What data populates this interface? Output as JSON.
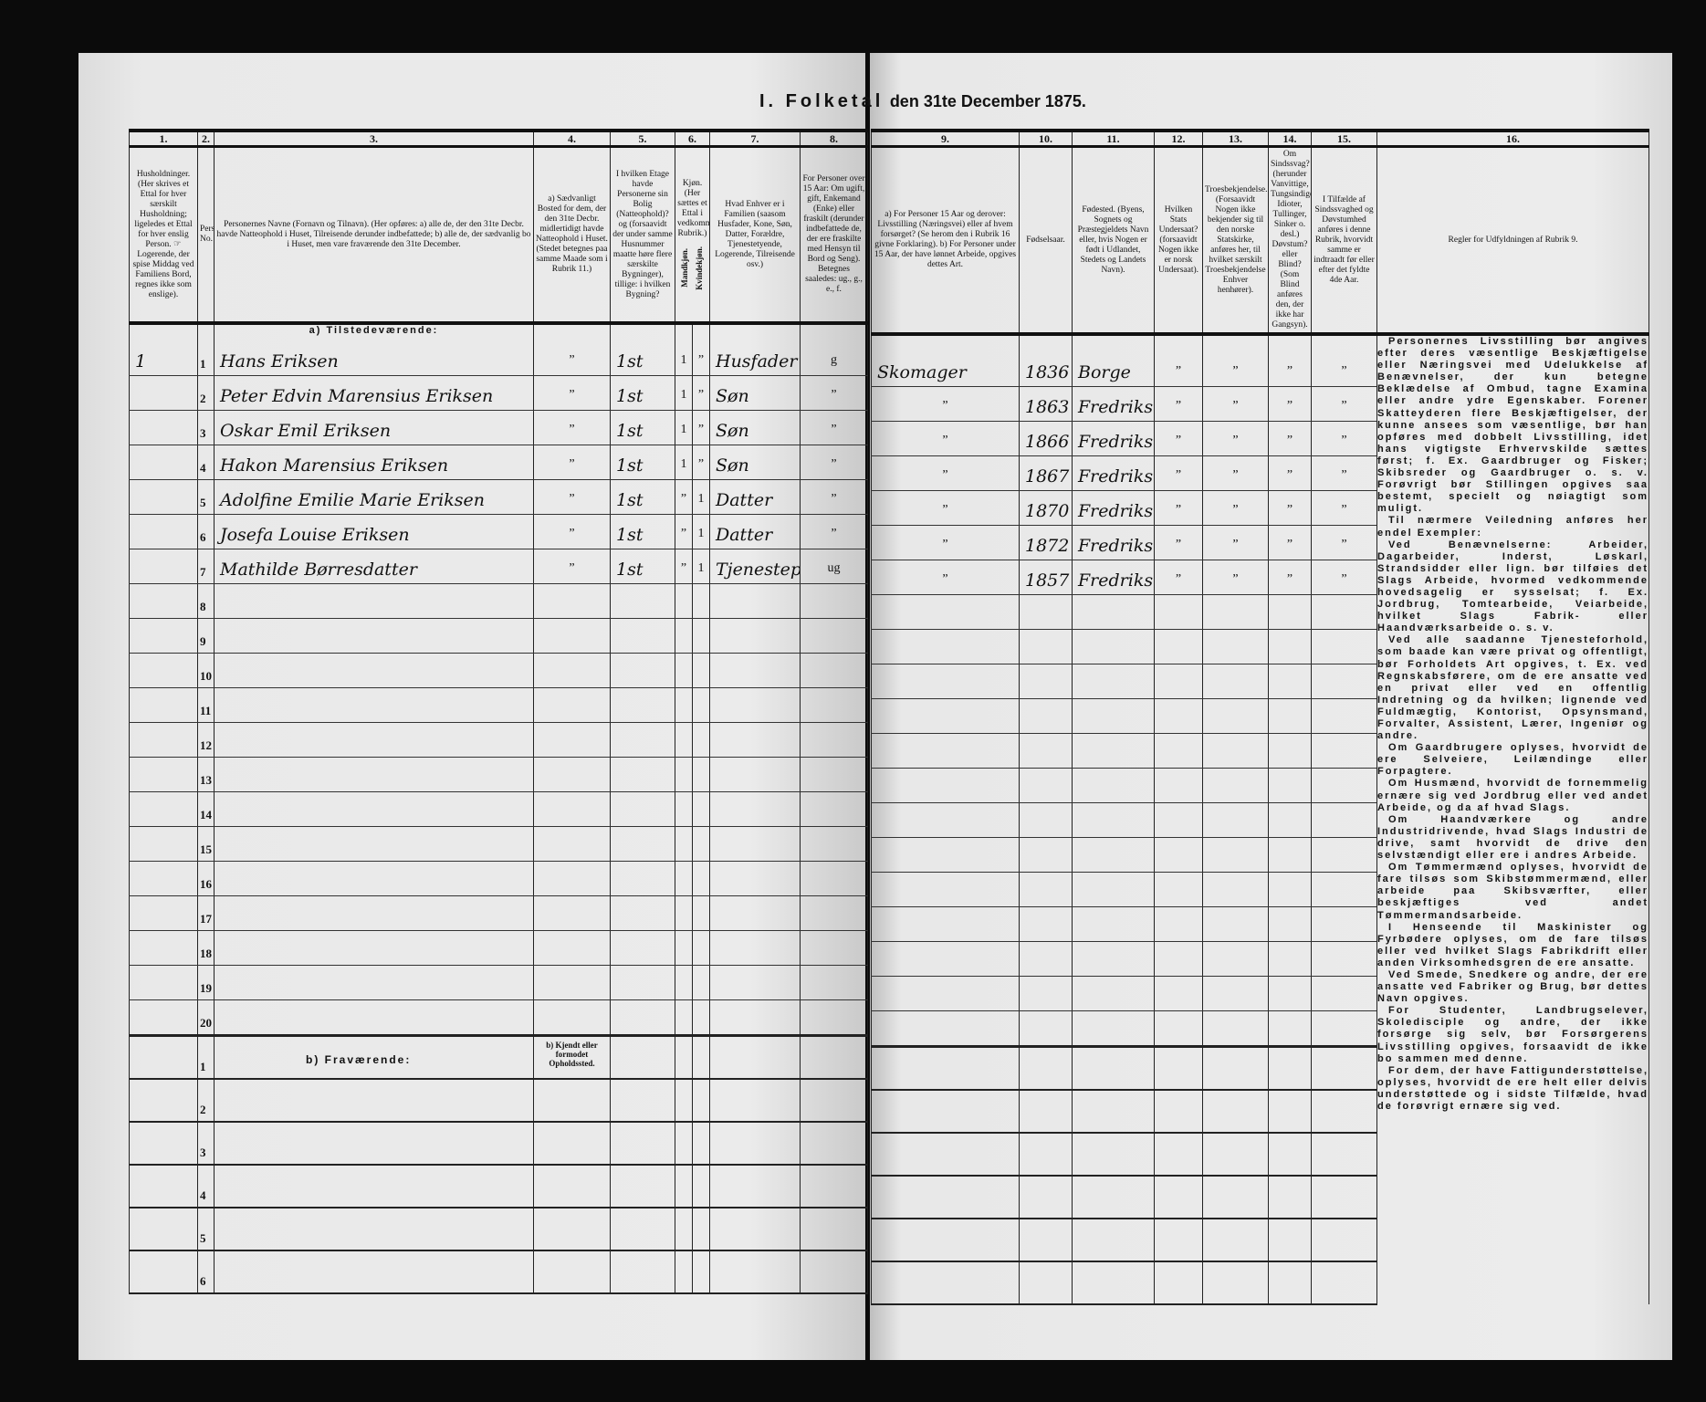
{
  "title": {
    "part1": "I. Folketal",
    "part2": "den 31te December 1875."
  },
  "left_columns": [
    {
      "num": "1.",
      "text": "Husholdninger. (Her skrives et Ettal for hver særskilt Husholdning; ligeledes et Ettal for hver enslig Person. ☞ Logerende, der spise Middag ved Familiens Bord, regnes ikke som enslige)."
    },
    {
      "num": "2.",
      "text": "Personernes No."
    },
    {
      "num": "3.",
      "text": "Personernes Navne (Fornavn og Tilnavn). (Her opføres: a) alle de, der den 31te Decbr. havde Natteophold i Huset, Tilreisende derunder indbefattede; b) alle de, der sædvanlig bo i Huset, men vare fraværende den 31te December."
    },
    {
      "num": "4.",
      "text": "a) Sædvanligt Bosted for dem, der den 31te Decbr. midlertidigt havde Natteophold i Huset. (Stedet betegnes paa samme Maade som i Rubrik 11.)"
    },
    {
      "num": "5.",
      "text": "I hvilken Etage havde Personerne sin Bolig (Natteophold)? og (forsaavidt der under samme Husnummer maatte høre flere særskilte Bygninger), tillige: i hvilken Bygning?"
    },
    {
      "num": "6.",
      "text": "Kjøn. (Her sættes et Ettal i vedkommende Rubrik.)",
      "sub": [
        "Mandkjøn.",
        "Kvindekjøn."
      ]
    },
    {
      "num": "7.",
      "text": "Hvad Enhver er i Familien (saasom Husfader, Kone, Søn, Datter, Forældre, Tjenestetyende, Logerende, Tilreisende osv.)"
    },
    {
      "num": "8.",
      "text": "For Personer over 15 Aar: Om ugift, gift, Enkemand (Enke) eller fraskilt (derunder indbefattede de, der ere fraskilte med Hensyn til Bord og Seng). Betegnes saaledes: ug., g., e., f."
    }
  ],
  "right_columns": [
    {
      "num": "9.",
      "text": "a) For Personer 15 Aar og derover: Livsstilling (Næringsvei) eller af hvem forsørget? (Se herom den i Rubrik 16 givne Forklaring). b) For Personer under 15 Aar, der have lønnet Arbeide, opgives dettes Art."
    },
    {
      "num": "10.",
      "text": "Fødselsaar."
    },
    {
      "num": "11.",
      "text": "Fødested. (Byens, Sognets og Præstegjeldets Navn eller, hvis Nogen er født i Udlandet, Stedets og Landets Navn)."
    },
    {
      "num": "12.",
      "text": "Hvilken Stats Undersaat? (forsaavidt Nogen ikke er norsk Undersaat)."
    },
    {
      "num": "13.",
      "text": "Troesbekjendelse. (Forsaavidt Nogen ikke bekjender sig til den norske Statskirke, anføres her, til hvilket særskilt Troesbekjendelse Enhver henhører)."
    },
    {
      "num": "14.",
      "text": "Om Sindssvag? (herunder Vanvittige, Tungsindige, Idioter, Tullinger, Sinker o. desl.) Døvstum? eller Blind? (Som Blind anføres den, der ikke har Gangsyn)."
    },
    {
      "num": "15.",
      "text": "I Tilfælde af Sindssvaghed og Døvstumhed anføres i denne Rubrik, hvorvidt samme er indtraadt før eller efter det fyldte 4de Aar."
    },
    {
      "num": "16.",
      "text": "Regler for Udfyldningen af Rubrik 9."
    }
  ],
  "section_present": "a) Tilstedeværende:",
  "section_absent": "b) Fraværende:",
  "col4_absent_note": "b) Kjendt eller formodet Opholdssted.",
  "row_numbers": [
    "1",
    "2",
    "3",
    "4",
    "5",
    "6",
    "7",
    "8",
    "9",
    "10",
    "11",
    "12",
    "13",
    "14",
    "15",
    "16",
    "17",
    "18",
    "19",
    "20"
  ],
  "absent_row_numbers": [
    "1",
    "2",
    "3",
    "4",
    "5",
    "6"
  ],
  "persons": [
    {
      "household": "1",
      "name": "Hans Eriksen",
      "bosted": "”",
      "etage": "1st",
      "male": "1",
      "female": "”",
      "family": "Husfader",
      "civil": "g",
      "occupation": "Skomager",
      "born": "1836",
      "birthplace": "Borge",
      "c12": "”",
      "c13": "”",
      "c14": "”",
      "c15": "”"
    },
    {
      "household": "",
      "name": "Peter Edvin Marensius Eriksen",
      "bosted": "”",
      "etage": "1st",
      "male": "1",
      "female": "”",
      "family": "Søn",
      "civil": "”",
      "occupation": "”",
      "born": "1863",
      "birthplace": "Fredrikstad",
      "c12": "”",
      "c13": "”",
      "c14": "”",
      "c15": "”"
    },
    {
      "household": "",
      "name": "Oskar Emil Eriksen",
      "bosted": "”",
      "etage": "1st",
      "male": "1",
      "female": "”",
      "family": "Søn",
      "civil": "”",
      "occupation": "”",
      "born": "1866",
      "birthplace": "Fredrikstad",
      "c12": "”",
      "c13": "”",
      "c14": "”",
      "c15": "”"
    },
    {
      "household": "",
      "name": "Hakon Marensius Eriksen",
      "bosted": "”",
      "etage": "1st",
      "male": "1",
      "female": "”",
      "family": "Søn",
      "civil": "”",
      "occupation": "”",
      "born": "1867",
      "birthplace": "Fredrikstad",
      "c12": "”",
      "c13": "”",
      "c14": "”",
      "c15": "”"
    },
    {
      "household": "",
      "name": "Adolfine Emilie Marie Eriksen",
      "bosted": "”",
      "etage": "1st",
      "male": "”",
      "female": "1",
      "family": "Datter",
      "civil": "”",
      "occupation": "”",
      "born": "1870",
      "birthplace": "Fredrikstad",
      "c12": "”",
      "c13": "”",
      "c14": "”",
      "c15": "”"
    },
    {
      "household": "",
      "name": "Josefa Louise Eriksen",
      "bosted": "”",
      "etage": "1st",
      "male": "”",
      "female": "1",
      "family": "Datter",
      "civil": "”",
      "occupation": "”",
      "born": "1872",
      "birthplace": "Fredrikstad",
      "c12": "”",
      "c13": "”",
      "c14": "”",
      "c15": "”"
    },
    {
      "household": "",
      "name": "Mathilde Børresdatter",
      "bosted": "”",
      "etage": "1st",
      "male": "”",
      "female": "1",
      "family": "Tjenestepige",
      "civil": "ug",
      "occupation": "”",
      "born": "1857",
      "birthplace": "Fredrikstad",
      "c12": "”",
      "c13": "”",
      "c14": "”",
      "c15": "”"
    }
  ],
  "rules": [
    "Personernes Livsstilling bør angives efter deres væsentlige Beskjæftigelse eller Næringsvei med Udelukkelse af Benævnelser, der kun betegne Beklædelse af Ombud, tagne Examina eller andre ydre Egenskaber. Forener Skatteyderen flere Beskjæftigelser, der kunne ansees som væsentlige, bør han opføres med dobbelt Livsstilling, idet hans vigtigste Erhvervskilde sættes først; f. Ex. Gaardbruger og Fisker; Skibsreder og Gaardbruger o. s. v. Forøvrigt bør Stillingen opgives saa bestemt, specielt og nøiagtigt som muligt.",
    "Til nærmere Veiledning anføres her endel Exempler:",
    "Ved Benævnelserne: Arbeider, Dagarbeider, Inderst, Løskarl, Strandsidder eller lign. bør tilføies det Slags Arbeide, hvormed vedkommende hovedsagelig er sysselsat; f. Ex. Jordbrug, Tomtearbeide, Veiarbeide, hvilket Slags Fabrik- eller Haandværksarbeide o. s. v.",
    "Ved alle saadanne Tjenesteforhold, som baade kan være privat og offentligt, bør Forholdets Art opgives, t. Ex. ved Regnskabsførere, om de ere ansatte ved en privat eller ved en offentlig Indretning og da hvilken; lignende ved Fuldmægtig, Kontorist, Opsynsmand, Forvalter, Assistent, Lærer, Ingeniør og andre.",
    "Om Gaardbrugere oplyses, hvorvidt de ere Selveiere, Leilændinge eller Forpagtere.",
    "Om Husmænd, hvorvidt de fornemmelig ernære sig ved Jordbrug eller ved andet Arbeide, og da af hvad Slags.",
    "Om Haandværkere og andre Industridrivende, hvad Slags Industri de drive, samt hvorvidt de drive den selvstændigt eller ere i andres Arbeide.",
    "Om Tømmermænd oplyses, hvorvidt de fare tilsøs som Skibstømmermænd, eller arbeide paa Skibsværfter, eller beskjæftiges ved andet Tømmermandsarbeide.",
    "I Henseende til Maskinister og Fyrbødere oplyses, om de fare tilsøs eller ved hvilket Slags Fabrikdrift eller anden Virksomhedsgren de ere ansatte.",
    "Ved Smede, Snedkere og andre, der ere ansatte ved Fabriker og Brug, bør dettes Navn opgives.",
    "For Studenter, Landbrugselever, Skoledisciple og andre, der ikke forsørge sig selv, bør Forsørgerens Livsstilling opgives, forsaavidt de ikke bo sammen med denne.",
    "For dem, der have Fattigunderstøttelse, oplyses, hvorvidt de ere helt eller delvis understøttede og i sidste Tilfælde, hvad de forøvrigt ernære sig ved."
  ]
}
